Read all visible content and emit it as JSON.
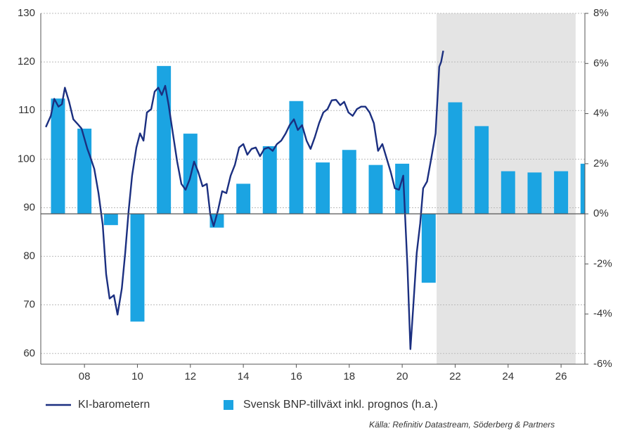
{
  "chart_data": {
    "type": "line_bar",
    "series": [
      {
        "name": "KI-barometern",
        "type": "line",
        "color": "#1b2f80",
        "x": [
          2006.54,
          2006.73,
          2006.86,
          2007.02,
          2007.15,
          2007.26,
          2007.42,
          2007.58,
          2007.73,
          2007.89,
          2008.11,
          2008.21,
          2008.37,
          2008.53,
          2008.69,
          2008.82,
          2008.95,
          2009.11,
          2009.25,
          2009.41,
          2009.54,
          2009.67,
          2009.8,
          2009.96,
          2010.1,
          2010.23,
          2010.36,
          2010.52,
          2010.65,
          2010.79,
          2010.92,
          2011.05,
          2011.18,
          2011.34,
          2011.5,
          2011.66,
          2011.82,
          2011.98,
          2012.14,
          2012.3,
          2012.46,
          2012.62,
          2012.75,
          2012.88,
          2013.04,
          2013.2,
          2013.36,
          2013.52,
          2013.68,
          2013.84,
          2014.0,
          2014.15,
          2014.31,
          2014.47,
          2014.63,
          2014.79,
          2014.95,
          2015.11,
          2015.27,
          2015.43,
          2015.6,
          2015.75,
          2015.91,
          2016.06,
          2016.22,
          2016.39,
          2016.54,
          2016.7,
          2016.86,
          2017.02,
          2017.18,
          2017.34,
          2017.5,
          2017.66,
          2017.81,
          2017.97,
          2018.13,
          2018.29,
          2018.45,
          2018.61,
          2018.77,
          2018.93,
          2019.09,
          2019.25,
          2019.41,
          2019.57,
          2019.72,
          2019.88,
          2020.04,
          2020.2,
          2020.31,
          2020.41,
          2020.55,
          2020.68,
          2020.79,
          2020.94,
          2021.1,
          2021.26,
          2021.4,
          2021.47,
          2021.55
        ],
        "values": [
          106.6,
          108.9,
          112.4,
          110.8,
          111.3,
          114.7,
          111.8,
          108.2,
          107.3,
          106.3,
          102.1,
          100.6,
          98.0,
          93.0,
          86.5,
          76.3,
          71.3,
          72.0,
          68.0,
          73.4,
          80.7,
          89.4,
          96.6,
          102.4,
          105.3,
          103.8,
          109.6,
          110.3,
          113.9,
          114.7,
          113.2,
          115.1,
          111.1,
          105.3,
          99.5,
          94.9,
          93.7,
          95.9,
          99.5,
          97.3,
          94.4,
          94.9,
          88.6,
          86.2,
          89.4,
          93.4,
          93.0,
          96.6,
          98.8,
          102.4,
          103.1,
          100.9,
          102.1,
          102.4,
          100.6,
          102.1,
          102.4,
          101.7,
          103.1,
          103.8,
          105.3,
          107.0,
          108.2,
          106.0,
          107.0,
          103.8,
          102.1,
          104.5,
          107.4,
          109.6,
          110.3,
          112.1,
          112.2,
          111.1,
          111.8,
          109.6,
          108.9,
          110.3,
          110.8,
          110.8,
          109.6,
          107.4,
          101.7,
          103.1,
          100.2,
          97.3,
          94.0,
          93.7,
          96.6,
          77.8,
          60.9,
          69.1,
          80.7,
          86.8,
          94.0,
          95.4,
          100.2,
          105.3,
          119.0,
          120.0,
          122.3
        ]
      },
      {
        "name": "Svensk BNP-tillväxt inkl. prognos (h.a.)",
        "type": "bar",
        "axis": "y2",
        "color": "#1ba4e2",
        "x": [
          2007,
          2008,
          2009,
          2010,
          2011,
          2012,
          2013,
          2014,
          2015,
          2016,
          2017,
          2018,
          2019,
          2020,
          2021,
          2022,
          2023,
          2024,
          2025,
          2026,
          2027
        ],
        "values": [
          4.6,
          3.4,
          -0.45,
          -4.3,
          5.9,
          3.2,
          -0.55,
          1.2,
          2.7,
          4.5,
          2.05,
          2.55,
          1.95,
          2.0,
          -2.75,
          4.45,
          3.5,
          1.7,
          1.65,
          1.7,
          2.0
        ]
      }
    ],
    "xlim": [
      2006.35,
      2026.9
    ],
    "xticks": [
      {
        "value": 2008,
        "label": "08"
      },
      {
        "value": 2010,
        "label": "10"
      },
      {
        "value": 2012,
        "label": "12"
      },
      {
        "value": 2014,
        "label": "14"
      },
      {
        "value": 2016,
        "label": "16"
      },
      {
        "value": 2018,
        "label": "18"
      },
      {
        "value": 2020,
        "label": "20"
      },
      {
        "value": 2022,
        "label": "22"
      },
      {
        "value": 2024,
        "label": "24"
      },
      {
        "value": 2026,
        "label": "26"
      }
    ],
    "ylim": [
      57.8,
      130
    ],
    "yticks": [
      60,
      70,
      80,
      90,
      100,
      110,
      120,
      130
    ],
    "y2lim": [
      -6,
      8
    ],
    "y2ticks": [
      {
        "value": -6,
        "label": "-6%"
      },
      {
        "value": -4,
        "label": "-4%"
      },
      {
        "value": -2,
        "label": "-2%"
      },
      {
        "value": 0,
        "label": "0%"
      },
      {
        "value": 2,
        "label": "2%"
      },
      {
        "value": 4,
        "label": "4%"
      },
      {
        "value": 6,
        "label": "6%"
      },
      {
        "value": 8,
        "label": "8%"
      }
    ],
    "grid": true,
    "shaded_region": {
      "xlim": [
        2021.3,
        2026.55
      ],
      "color": "#e4e4e4"
    },
    "source": "Källa: Refinitiv Datastream, Söderberg & Partners"
  }
}
